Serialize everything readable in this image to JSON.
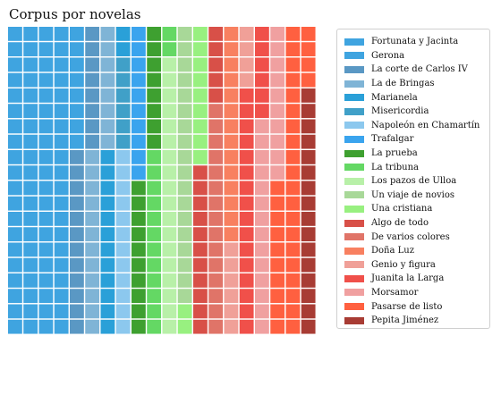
{
  "chart_data": {
    "type": "waffle",
    "title": "Corpus por novelas",
    "grid": {
      "rows": 20,
      "columns": 20
    },
    "legend_position": "right",
    "series": [
      {
        "name": "Fortunata y Jacinta",
        "cells": 82,
        "color": "#3fa4e0"
      },
      {
        "name": "Gerona",
        "cells": 6,
        "color": "#3fa4e0"
      },
      {
        "name": "La corte de Carlos IV",
        "cells": 20,
        "color": "#5a98c4"
      },
      {
        "name": "La de Bringas",
        "cells": 20,
        "color": "#7fb4d6"
      },
      {
        "name": "Marianela",
        "cells": 14,
        "color": "#2aa0d8"
      },
      {
        "name": "Misericordia",
        "cells": 6,
        "color": "#40a0c8"
      },
      {
        "name": "Napoleón en Chamartín",
        "cells": 12,
        "color": "#8cc8ee"
      },
      {
        "name": "Trafalgar",
        "cells": 10,
        "color": "#3aa4ee"
      },
      {
        "name": "La prueba",
        "cells": 18,
        "color": "#3ea030"
      },
      {
        "name": "La tribuna",
        "cells": 14,
        "color": "#64d864"
      },
      {
        "name": "Los pazos de Ulloa",
        "cells": 18,
        "color": "#b8f0a8"
      },
      {
        "name": "Un viaje de novios",
        "cells": 18,
        "color": "#a8d898"
      },
      {
        "name": "Una cristiana",
        "cells": 11,
        "color": "#98f080"
      },
      {
        "name": "Algo de todo",
        "cells": 16,
        "color": "#d85048"
      },
      {
        "name": "De varios colores",
        "cells": 15,
        "color": "#e07468"
      },
      {
        "name": "Doña Luz",
        "cells": 14,
        "color": "#f88060"
      },
      {
        "name": "Genio y figura",
        "cells": 10,
        "color": "#f0a098"
      },
      {
        "name": "Juanita la Larga",
        "cells": 22,
        "color": "#f0504a"
      },
      {
        "name": "Morsamor",
        "cells": 24,
        "color": "#f0a0a0"
      },
      {
        "name": "Pasarse de listo",
        "cells": 34,
        "color": "#ff6040"
      },
      {
        "name": "Pepita Jiménez",
        "cells": 16,
        "color": "#a83c34"
      }
    ]
  }
}
